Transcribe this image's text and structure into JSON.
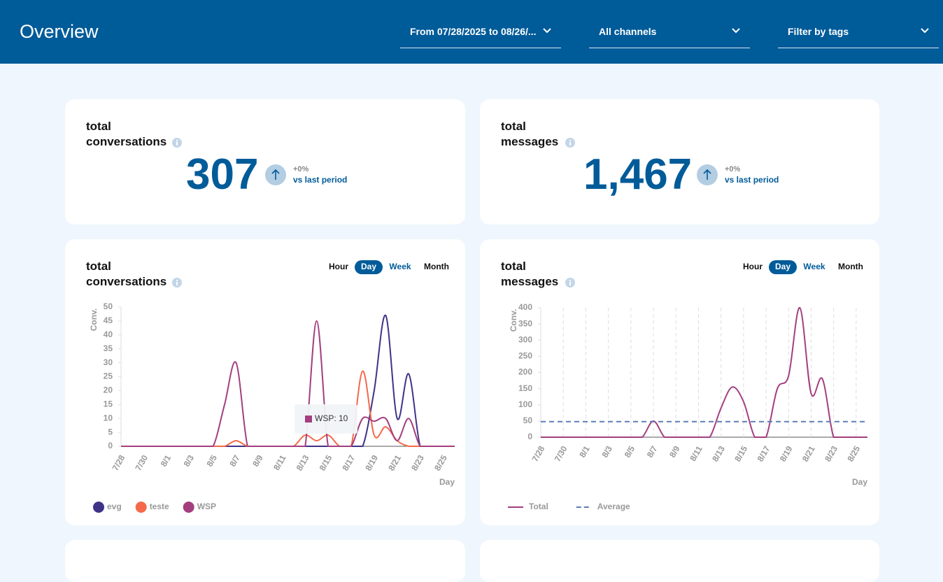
{
  "header": {
    "title": "Overview",
    "filters": [
      "From 07/28/2025 to 08/26/...",
      "All channels",
      "Filter by tags"
    ]
  },
  "kpis": [
    {
      "title": [
        "total",
        "conversations"
      ],
      "value": "307",
      "change": "+0%",
      "compare": "vs last period"
    },
    {
      "title": [
        "total",
        "messages"
      ],
      "value": "1,467",
      "change": "+0%",
      "compare": "vs last period"
    }
  ],
  "chart_data": [
    {
      "type": "line",
      "title": [
        "total",
        "conversations"
      ],
      "toggles": [
        "Hour",
        "Day",
        "Week",
        "Month"
      ],
      "active_toggle": 1,
      "ylabel": "Conv.",
      "xlabel": "Day",
      "grid": false,
      "categories": [
        "7/28",
        null,
        "7/30",
        null,
        "8/1",
        null,
        "8/3",
        null,
        "8/5",
        null,
        "8/7",
        null,
        "8/9",
        null,
        "8/11",
        null,
        "8/13",
        null,
        "8/15",
        null,
        "8/17",
        null,
        "8/19",
        null,
        "8/21",
        null,
        "8/23",
        null,
        "8/25",
        null
      ],
      "ylim": [
        0,
        50
      ],
      "yticks": [
        0,
        5,
        10,
        15,
        20,
        25,
        30,
        35,
        40,
        45,
        50
      ],
      "series": [
        {
          "name": "evg",
          "color": "#3f3388",
          "values": [
            0,
            0,
            0,
            0,
            0,
            0,
            0,
            0,
            0,
            0,
            0,
            0,
            0,
            0,
            0,
            0,
            0,
            0,
            0,
            0,
            0,
            0,
            20,
            47,
            10,
            26,
            0,
            0,
            0,
            0
          ]
        },
        {
          "name": "teste",
          "color": "#f4694a",
          "values": [
            0,
            0,
            0,
            0,
            0,
            0,
            0,
            0,
            0,
            0,
            2,
            0,
            0,
            0,
            0,
            0,
            4,
            2,
            4,
            0,
            0,
            27,
            4,
            7,
            2,
            0,
            0,
            0,
            0,
            0
          ]
        },
        {
          "name": "WSP",
          "color": "#a33f7f",
          "values": [
            0,
            0,
            0,
            0,
            0,
            0,
            0,
            0,
            0,
            15,
            30,
            0,
            0,
            0,
            0,
            0,
            0,
            45,
            0,
            0,
            0,
            10,
            9,
            10,
            2,
            10,
            0,
            0,
            0,
            0
          ]
        }
      ],
      "tooltip": "WSP: 10"
    },
    {
      "type": "line",
      "title": [
        "total",
        "messages"
      ],
      "toggles": [
        "Hour",
        "Day",
        "Week",
        "Month"
      ],
      "active_toggle": 1,
      "ylabel": "Conv.",
      "xlabel": "Day",
      "grid": true,
      "categories": [
        "7/28",
        null,
        "7/30",
        null,
        "8/1",
        null,
        "8/3",
        null,
        "8/5",
        null,
        "8/7",
        null,
        "8/9",
        null,
        "8/11",
        null,
        "8/13",
        null,
        "8/15",
        null,
        "8/17",
        null,
        "8/19",
        null,
        "8/21",
        null,
        "8/23",
        null,
        "8/25",
        null
      ],
      "ylim": [
        0,
        400
      ],
      "yticks": [
        0,
        50,
        100,
        150,
        200,
        250,
        300,
        350,
        400
      ],
      "series": [
        {
          "name": "Total",
          "color": "#a33f7f",
          "values": [
            0,
            0,
            0,
            0,
            0,
            0,
            0,
            0,
            0,
            0,
            50,
            0,
            0,
            0,
            0,
            0,
            90,
            155,
            110,
            0,
            0,
            150,
            190,
            400,
            135,
            180,
            0,
            0,
            0,
            0
          ]
        },
        {
          "name": "Average",
          "color": "#5b7fb5",
          "dashed": true,
          "values": [
            48,
            48,
            48,
            48,
            48,
            48,
            48,
            48,
            48,
            48,
            48,
            48,
            48,
            48,
            48,
            48,
            48,
            48,
            48,
            48,
            48,
            48,
            48,
            48,
            48,
            48,
            48,
            48,
            48,
            48
          ]
        }
      ]
    }
  ]
}
